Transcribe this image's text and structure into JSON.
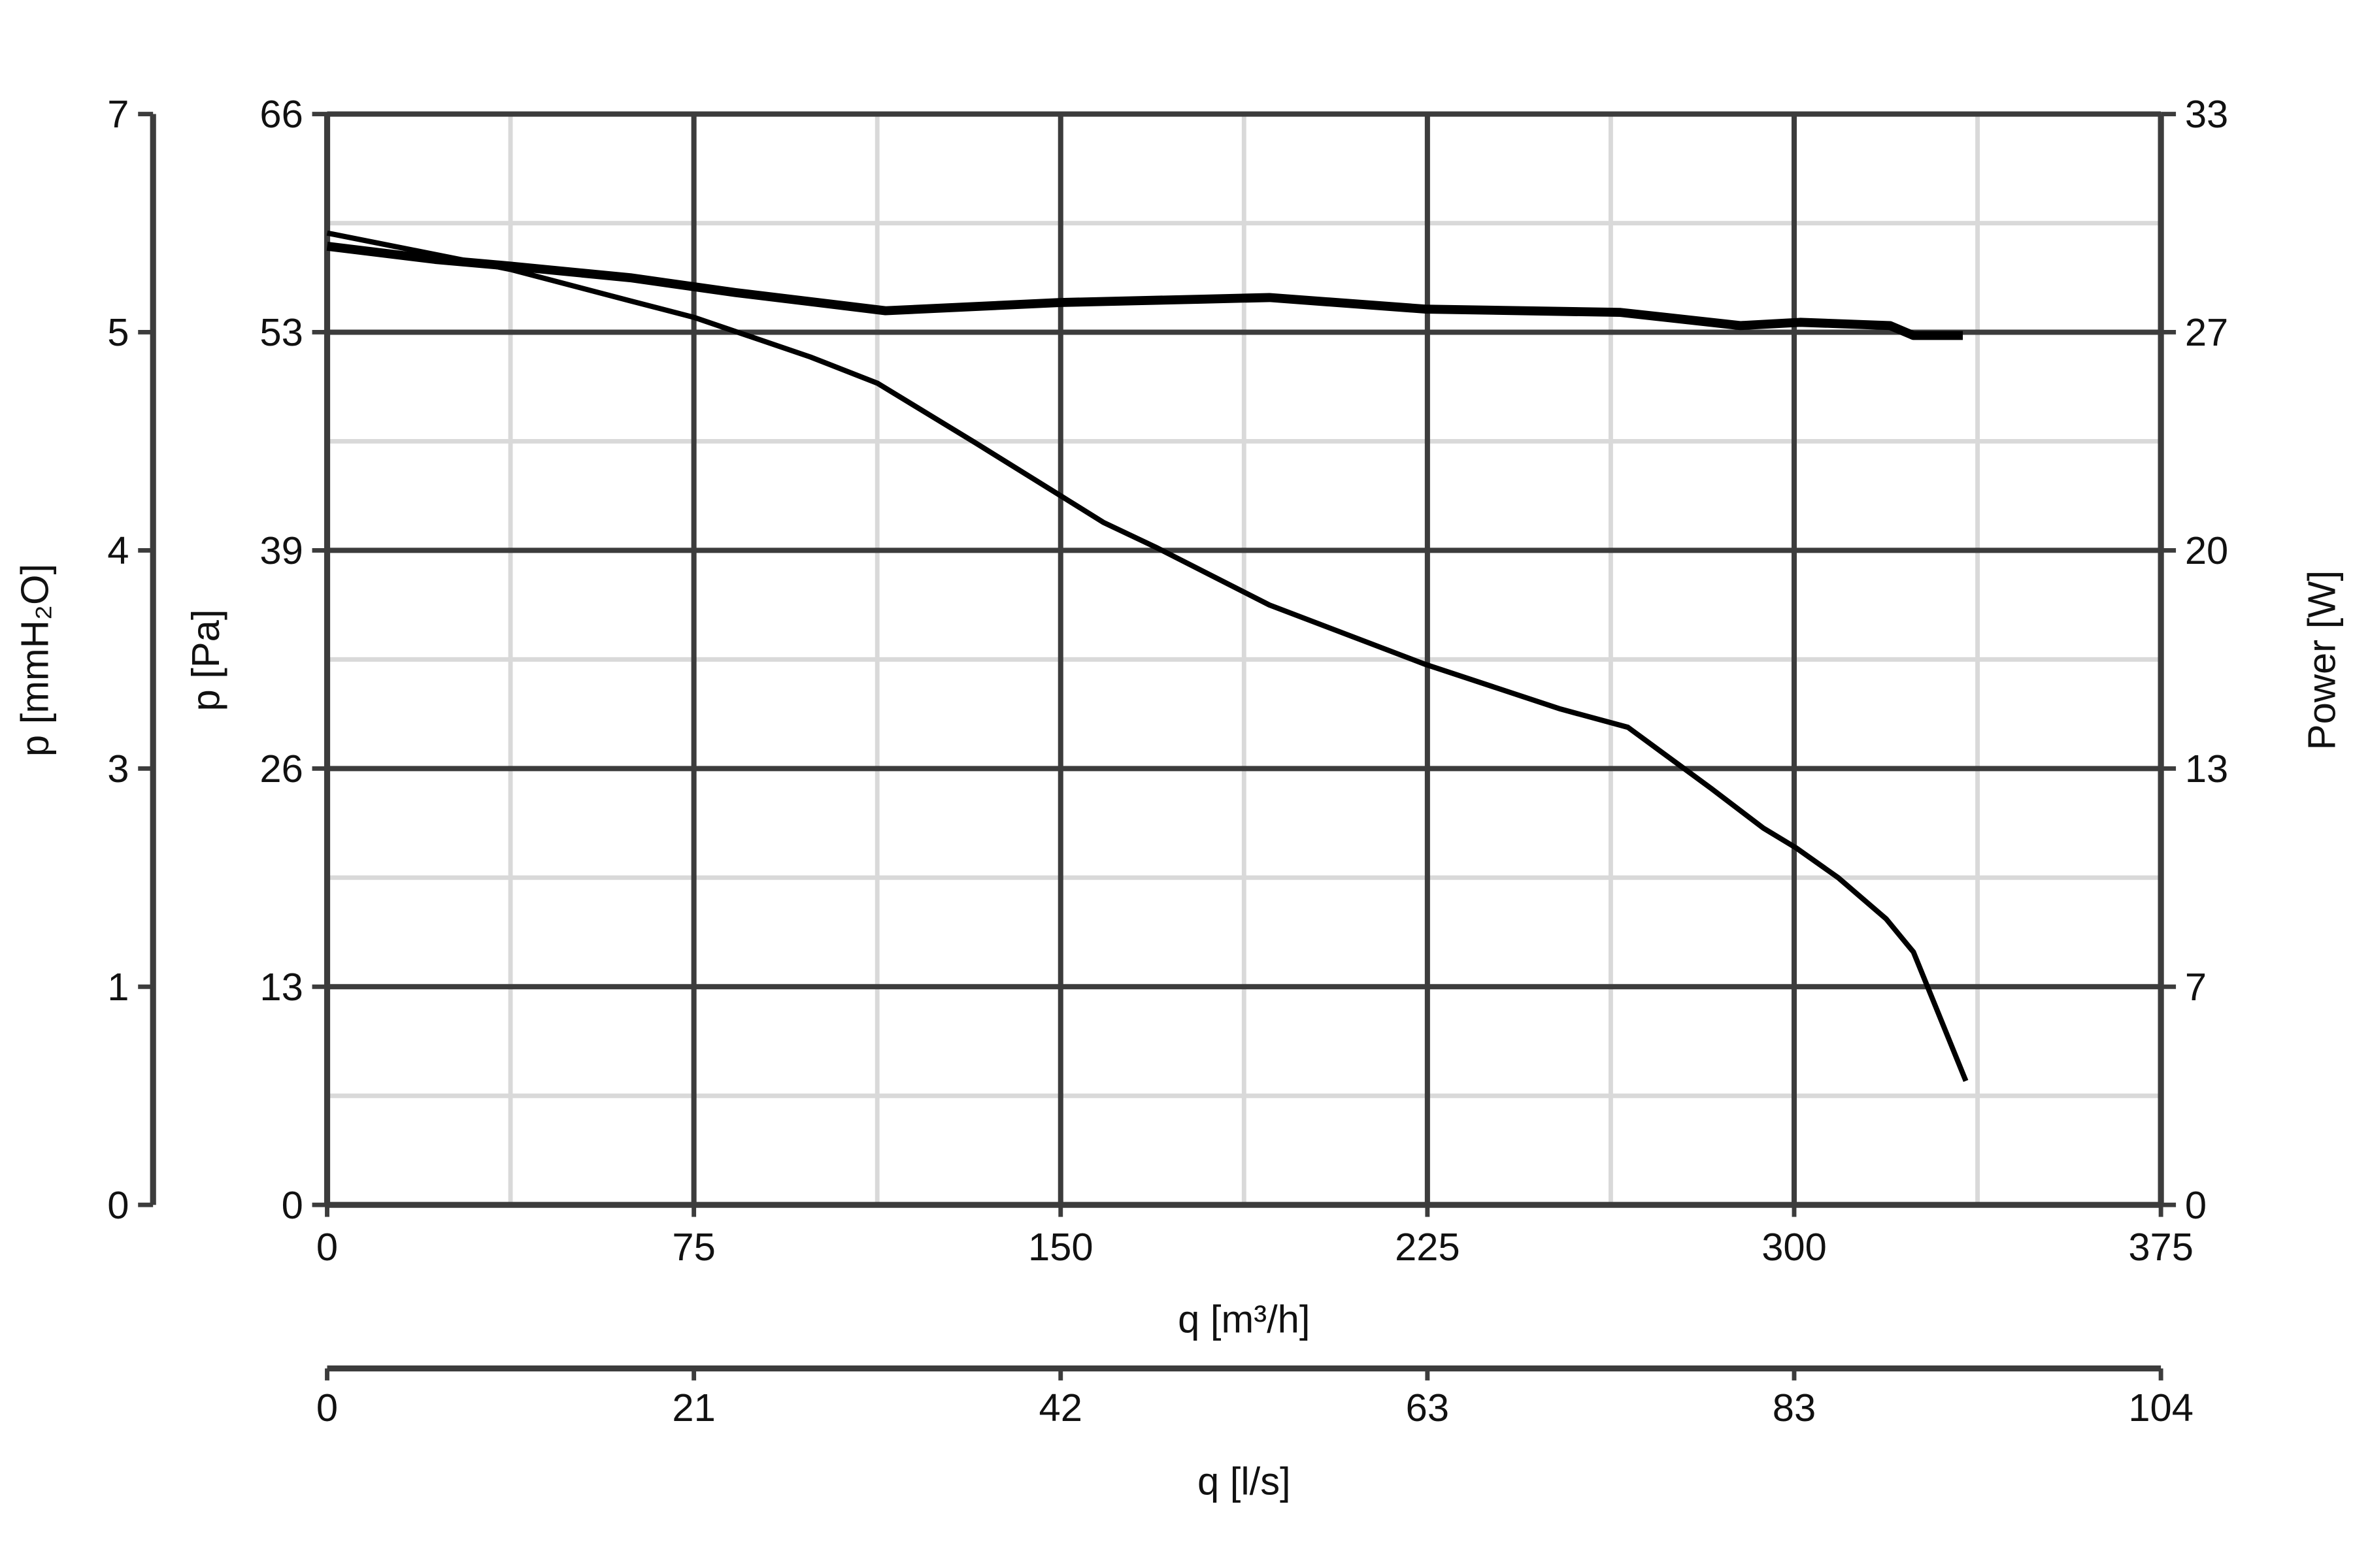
{
  "chart_data": {
    "type": "line",
    "title": "",
    "xlabel": "q [m³/h]",
    "xlim": [
      0,
      375
    ],
    "xticks": [
      "0",
      "75",
      "150",
      "225",
      "300",
      "375"
    ],
    "x2label": "q [l/s]",
    "x2ticks": [
      "0",
      "21",
      "42",
      "63",
      "83",
      "104"
    ],
    "ylabel": "p [Pa]",
    "ylim": [
      0,
      66
    ],
    "yticks": [
      "0",
      "13",
      "26",
      "39",
      "53",
      "66"
    ],
    "y2label": "p [mmH₂O]",
    "y2ticks": [
      "0",
      "1",
      "3",
      "4",
      "5",
      "7"
    ],
    "y3label": "Power [W]",
    "y3lim": [
      0,
      33
    ],
    "y3ticks": [
      "0",
      "7",
      "13",
      "20",
      "27",
      "33"
    ],
    "grid": true,
    "colors": {
      "major_grid": "#3c3c3c",
      "minor_grid": "#d9d9d9",
      "curve": "#000000"
    },
    "series": [
      {
        "axis": "p [Pa]",
        "x": [
          0,
          37.4,
          62,
          75,
          98.8,
          112.6,
          132.6,
          150,
          158.7,
          169.4,
          192.7,
          224.6,
          252.2,
          266,
          283,
          293.7,
          300.4,
          309,
          318.8,
          324.4,
          335.1
        ],
        "y": [
          58.8,
          56.6,
          54.7,
          53.7,
          51.3,
          49.7,
          46.1,
          42.9,
          41.3,
          39.8,
          36.3,
          32.7,
          30.0,
          28.9,
          25.2,
          22.8,
          21.6,
          19.8,
          17.3,
          15.3,
          7.5
        ]
      },
      {
        "axis": "Power [W]",
        "x": [
          0,
          22.1,
          37.4,
          62,
          83.5,
          114.2,
          150,
          178.6,
          192.7,
          224.6,
          264.5,
          289,
          301.2,
          319.6,
          324.4,
          334.5
        ],
        "y": [
          29.0,
          28.6,
          28.4,
          28.05,
          27.6,
          27.05,
          27.3,
          27.4,
          27.45,
          27.1,
          27.0,
          26.6,
          26.7,
          26.6,
          26.3,
          26.3
        ]
      }
    ]
  }
}
